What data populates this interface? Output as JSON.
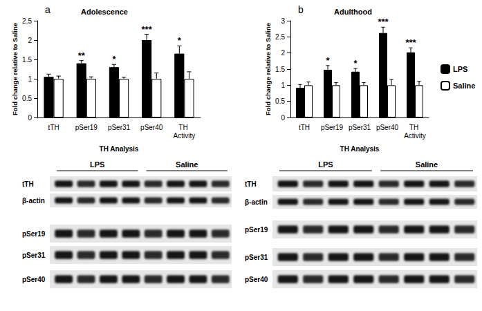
{
  "chart_data": [
    {
      "type": "bar",
      "panel": "a",
      "title": "Adolescence",
      "xlabel": "TH Analysis",
      "ylabel": "Fold change relative to Saline",
      "categories": [
        "tTH",
        "pSer19",
        "pSer31",
        "pSer40",
        "TH Activity"
      ],
      "series": [
        {
          "name": "LPS",
          "color": "#000000",
          "values": [
            1.05,
            1.4,
            1.3,
            2.0,
            1.65
          ],
          "errors": [
            0.07,
            0.07,
            0.07,
            0.15,
            0.2
          ]
        },
        {
          "name": "Saline",
          "color": "#ffffff",
          "values": [
            1,
            1,
            1,
            1,
            1
          ],
          "errors": [
            0.07,
            0.05,
            0.04,
            0.15,
            0.18
          ]
        }
      ],
      "annotations": [
        null,
        "**",
        "*",
        "***",
        "*"
      ],
      "ylim": [
        0,
        2.5
      ],
      "yticks": [
        0,
        0.5,
        1,
        1.5,
        2,
        2.5
      ],
      "grid": false
    },
    {
      "type": "bar",
      "panel": "b",
      "title": "Adulthood",
      "xlabel": "TH Analysis",
      "ylabel": "Fold change relative to Saline",
      "categories": [
        "tTH",
        "pSer19",
        "pSer31",
        "pSer40",
        "TH Activity"
      ],
      "series": [
        {
          "name": "LPS",
          "color": "#000000",
          "values": [
            0.92,
            1.48,
            1.42,
            2.62,
            2.02
          ],
          "errors": [
            0.1,
            0.13,
            0.1,
            0.18,
            0.14
          ]
        },
        {
          "name": "Saline",
          "color": "#ffffff",
          "values": [
            1,
            1,
            1,
            1,
            1
          ],
          "errors": [
            0.1,
            0.08,
            0.08,
            0.18,
            0.12
          ]
        }
      ],
      "annotations": [
        null,
        "*",
        "*",
        "***",
        "***"
      ],
      "ylim": [
        0,
        3
      ],
      "yticks": [
        0,
        0.5,
        1,
        1.5,
        2,
        2.5,
        3
      ],
      "grid": false,
      "legend": "right"
    }
  ],
  "blots": [
    {
      "groups": [
        "LPS",
        "Saline"
      ],
      "rows": [
        "tTH",
        "β-actin",
        "pSer19",
        "pSer31",
        "pSer40"
      ]
    },
    {
      "groups": [
        "LPS",
        "Saline"
      ],
      "rows": [
        "tTH",
        "β-actin",
        "pSer19",
        "pSer31",
        "pSer40"
      ]
    }
  ]
}
